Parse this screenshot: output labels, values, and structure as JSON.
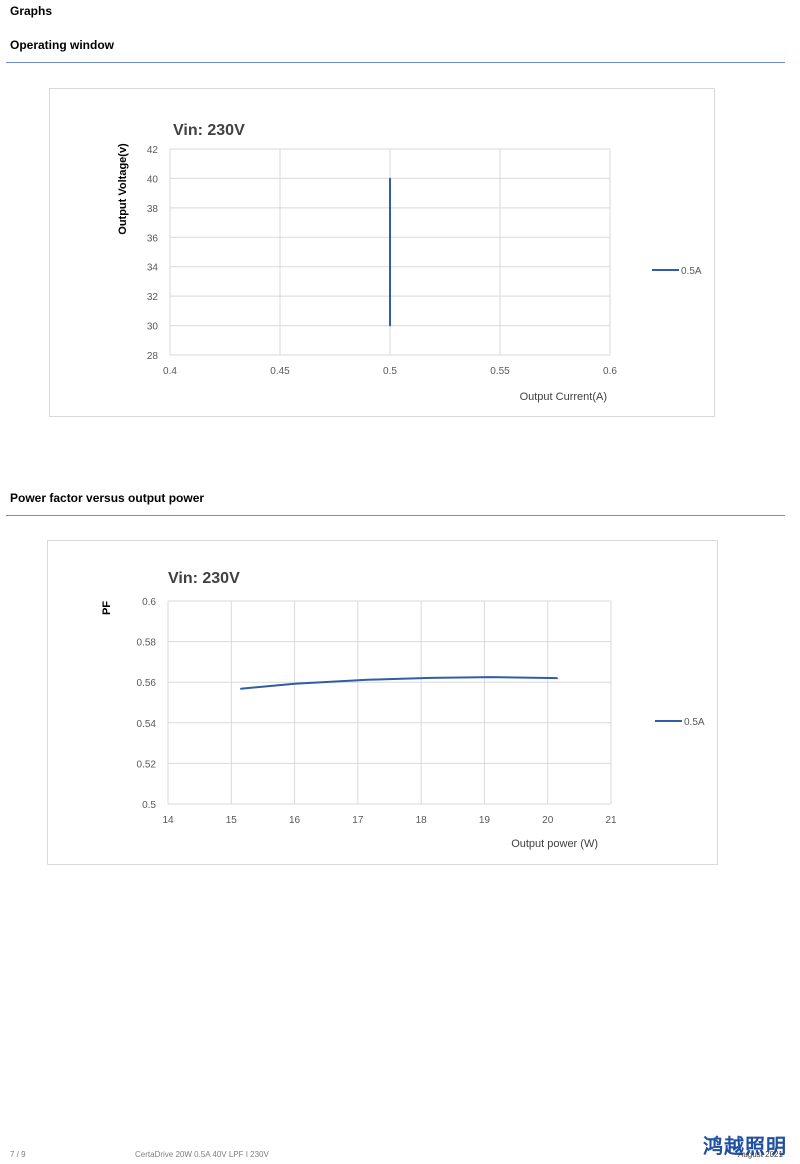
{
  "page": {
    "heading": "Graphs"
  },
  "sections": [
    {
      "title": "Operating window"
    },
    {
      "title": "Power factor versus output power"
    }
  ],
  "chart_data": [
    {
      "type": "line",
      "title": "Vin: 230V",
      "xlabel": "Output Current(A)",
      "ylabel": "Output Voltage(v)",
      "xlim": [
        0.4,
        0.6
      ],
      "ylim": [
        28,
        42
      ],
      "x_ticks": [
        "0.4",
        "0.45",
        "0.5",
        "0.55",
        "0.6"
      ],
      "y_ticks": [
        "28",
        "30",
        "32",
        "34",
        "36",
        "38",
        "40",
        "42"
      ],
      "grid": true,
      "legend": "right",
      "series": [
        {
          "name": "0.5A",
          "color": "#2e5ea8",
          "points": [
            [
              0.5,
              30
            ],
            [
              0.5,
              40
            ]
          ]
        }
      ]
    },
    {
      "type": "line",
      "title": "Vin: 230V",
      "xlabel": "Output power (W)",
      "ylabel": "PF",
      "xlim": [
        14,
        21
      ],
      "ylim": [
        0.5,
        0.6
      ],
      "x_ticks": [
        "14",
        "15",
        "16",
        "17",
        "18",
        "19",
        "20",
        "21"
      ],
      "y_ticks": [
        "0.5",
        "0.52",
        "0.54",
        "0.56",
        "0.58",
        "0.6"
      ],
      "grid": true,
      "legend": "right",
      "series": [
        {
          "name": "0.5A",
          "color": "#2e5ea8",
          "points": [
            [
              15.15,
              0.5568
            ],
            [
              16,
              0.5592
            ],
            [
              17.15,
              0.5612
            ],
            [
              18.15,
              0.5621
            ],
            [
              19.1,
              0.5625
            ],
            [
              20.15,
              0.562
            ]
          ]
        }
      ]
    }
  ],
  "footer": {
    "page_number": "7 / 9",
    "product": "CertaDrive 20W 0.5A 40V LPF I 230V",
    "date": "August 2021",
    "logo_text": "鸿越照明"
  }
}
